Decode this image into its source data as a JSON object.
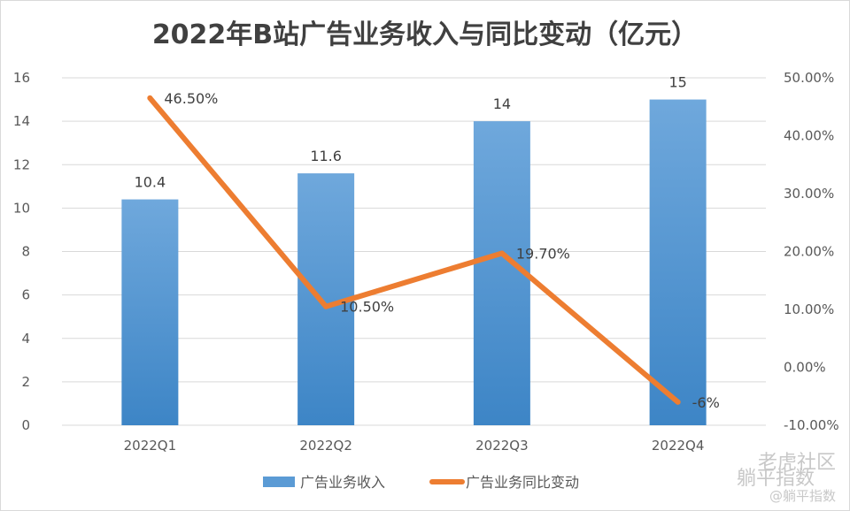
{
  "chart_data": {
    "type": "bar",
    "title": "2022年B站广告业务收入与同比变动（亿元）",
    "categories": [
      "2022Q1",
      "2022Q2",
      "2022Q3",
      "2022Q4"
    ],
    "series": [
      {
        "name": "广告业务收入",
        "type": "bar",
        "axis": "left",
        "values": [
          10.4,
          11.6,
          14,
          15
        ],
        "labels": [
          "10.4",
          "11.6",
          "14",
          "15"
        ],
        "color": "#5b9bd5"
      },
      {
        "name": "广告业务同比变动",
        "type": "line",
        "axis": "right",
        "values": [
          46.5,
          10.5,
          19.7,
          -6
        ],
        "labels": [
          "46.50%",
          "10.50%",
          "19.70%",
          "-6%"
        ],
        "color": "#ed7d31"
      }
    ],
    "y_left": {
      "range": [
        0,
        16
      ],
      "ticks": [
        "0",
        "2",
        "4",
        "6",
        "8",
        "10",
        "12",
        "14",
        "16"
      ]
    },
    "y_right": {
      "range": [
        -10,
        50
      ],
      "ticks": [
        "-10.00%",
        "0.00%",
        "10.00%",
        "20.00%",
        "30.00%",
        "40.00%",
        "50.00%"
      ]
    },
    "grid": true,
    "legend_position": "bottom"
  },
  "watermark": {
    "line1": "老虎社区",
    "line2": "躺平指数",
    "line3": "@躺平指数"
  }
}
